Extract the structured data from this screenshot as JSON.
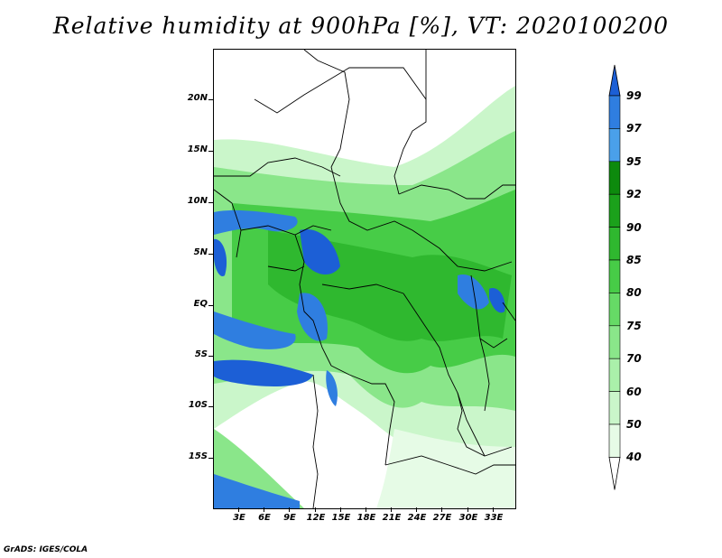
{
  "title": "Relative humidity at 900hPa [%], VT: 2020100200",
  "lat_labels": [
    "20N",
    "15N",
    "10N",
    "5N",
    "EQ",
    "5S",
    "10S",
    "15S"
  ],
  "lon_labels": [
    "3E",
    "6E",
    "9E",
    "12E",
    "15E",
    "18E",
    "21E",
    "24E",
    "27E",
    "30E",
    "33E"
  ],
  "colorbar": {
    "labels": [
      "99",
      "97",
      "95",
      "92",
      "90",
      "85",
      "80",
      "75",
      "70",
      "60",
      "50",
      "40"
    ],
    "colors": [
      "#1c5fd6",
      "#2f7ee0",
      "#4aa0ea",
      "#0d8a0d",
      "#1ba11b",
      "#2fb82f",
      "#47cc47",
      "#66da66",
      "#8ae68a",
      "#aaf0aa",
      "#caf6ca",
      "#e6fbe6"
    ]
  },
  "credit": "GrADS: IGES/COLA"
}
